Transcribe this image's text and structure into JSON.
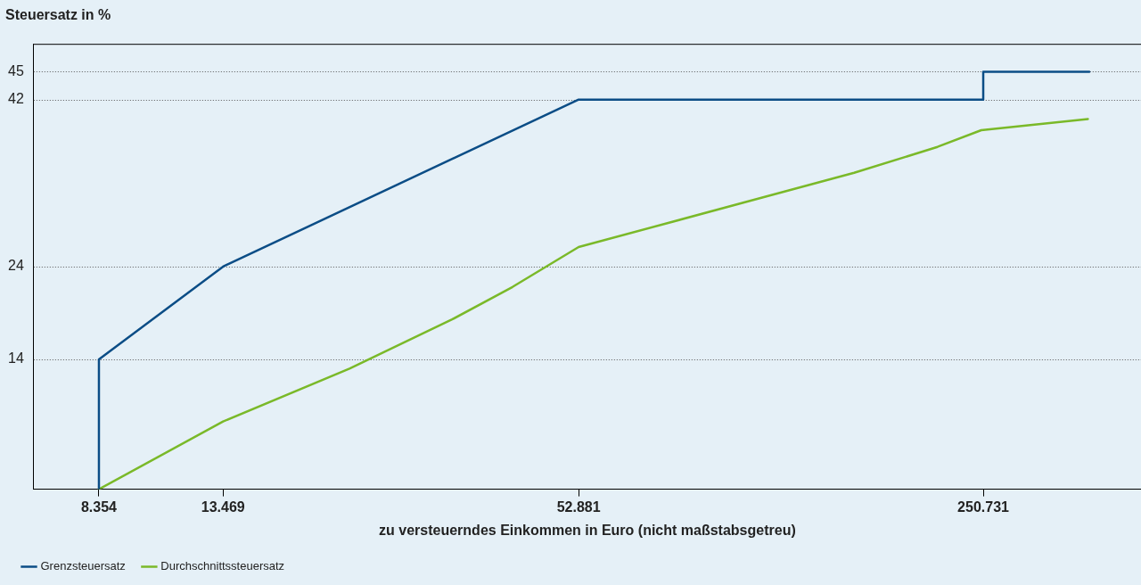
{
  "chart_data": {
    "type": "line",
    "ylabel": "Steuersatz in %",
    "xlabel": "zu versteuerndes Einkommen in Euro (nicht maßstabsgetreu)",
    "log": "x",
    "xlim": [
      6500,
      460000
    ],
    "xticks": [
      {
        "value": 8354,
        "label": "8.354"
      },
      {
        "value": 13469,
        "label": "13.469"
      },
      {
        "value": 52881,
        "label": "52.881"
      },
      {
        "value": 250731,
        "label": "250.731"
      }
    ],
    "ylim": [
      0,
      48
    ],
    "yticks": [
      14,
      24,
      42,
      45
    ],
    "grid": "y",
    "legend": "bottom left",
    "marker": "none",
    "line_style": "solid",
    "series": [
      {
        "name": "Grenzsteuersatz",
        "color": "#0b4d86",
        "x": [
          8354,
          8354,
          13469,
          52881,
          250731,
          250731,
          377000
        ],
        "values": [
          0,
          14,
          24,
          42,
          42,
          45,
          45
        ]
      },
      {
        "name": "Durchschnittssteuersatz",
        "color": "#7ab929",
        "x": [
          8354,
          13469,
          21900,
          32500,
          41000,
          52881,
          102500,
          152600,
          210300,
          248800,
          375000
        ],
        "values": [
          0,
          7.3,
          13.0,
          18.3,
          21.8,
          26.1,
          31.1,
          34.1,
          36.9,
          38.7,
          39.9
        ]
      }
    ]
  }
}
